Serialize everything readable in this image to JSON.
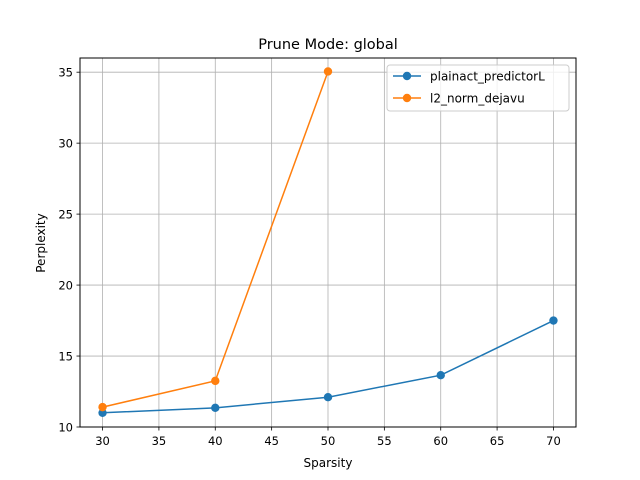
{
  "chart_data": {
    "type": "line",
    "title": "Prune Mode: global",
    "xlabel": "Sparsity",
    "ylabel": "Perplexity",
    "xlim": [
      28,
      72
    ],
    "ylim": [
      10,
      36
    ],
    "xticks": [
      30,
      35,
      40,
      45,
      50,
      55,
      60,
      65,
      70
    ],
    "yticks": [
      10,
      15,
      20,
      25,
      30,
      35
    ],
    "grid": true,
    "legend_position": "top-right",
    "series": [
      {
        "name": "plainact_predictorL",
        "color": "#1f77b4",
        "x": [
          30,
          40,
          50,
          60,
          70
        ],
        "y": [
          11.0,
          11.35,
          12.1,
          13.65,
          17.5
        ]
      },
      {
        "name": "l2_norm_dejavu",
        "color": "#ff7f0e",
        "x": [
          30,
          40,
          50
        ],
        "y": [
          11.4,
          13.25,
          35.05
        ]
      }
    ]
  }
}
